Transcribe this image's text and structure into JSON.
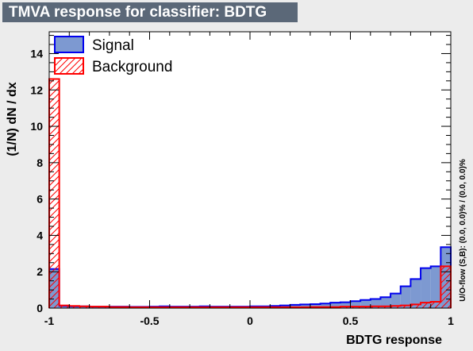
{
  "chart_data": {
    "type": "histogram",
    "title": "TMVA response for classifier: BDTG",
    "xlabel": "BDTG response",
    "ylabel": "(1/N) dN / dx",
    "xlim": [
      -1,
      1
    ],
    "ylim": [
      0,
      15.2
    ],
    "xticks": [
      -1,
      -0.5,
      0,
      0.5,
      1
    ],
    "xtick_labels": [
      "-1",
      "-0.5",
      "0",
      "0.5",
      "1"
    ],
    "yticks": [
      0,
      2,
      4,
      6,
      8,
      10,
      12,
      14
    ],
    "ytick_labels": [
      "0",
      "2",
      "4",
      "6",
      "8",
      "10",
      "12",
      "14"
    ],
    "bins": 40,
    "legend_position": "top-left",
    "overflow_label": "U/O-flow (S,B): (0.0, 0.0)% / (0.0, 0.0)%",
    "series": [
      {
        "name": "Signal",
        "color": "#0000ee",
        "fill": "#7d99d1",
        "values": [
          2.15,
          0.12,
          0.1,
          0.1,
          0.08,
          0.08,
          0.08,
          0.08,
          0.07,
          0.07,
          0.08,
          0.1,
          0.08,
          0.08,
          0.08,
          0.1,
          0.08,
          0.08,
          0.08,
          0.08,
          0.1,
          0.1,
          0.12,
          0.15,
          0.18,
          0.2,
          0.22,
          0.25,
          0.3,
          0.32,
          0.38,
          0.45,
          0.5,
          0.6,
          0.8,
          1.2,
          1.6,
          2.2,
          2.3,
          3.35
        ]
      },
      {
        "name": "Background",
        "color": "#ff0000",
        "fill": "hatched",
        "values": [
          12.6,
          0.15,
          0.12,
          0.1,
          0.08,
          0.08,
          0.06,
          0.06,
          0.05,
          0.05,
          0.05,
          0.05,
          0.05,
          0.05,
          0.05,
          0.05,
          0.05,
          0.05,
          0.05,
          0.05,
          0.05,
          0.05,
          0.05,
          0.05,
          0.05,
          0.05,
          0.06,
          0.06,
          0.06,
          0.08,
          0.08,
          0.08,
          0.1,
          0.1,
          0.12,
          0.15,
          0.2,
          0.3,
          0.35,
          2.3
        ]
      }
    ]
  }
}
